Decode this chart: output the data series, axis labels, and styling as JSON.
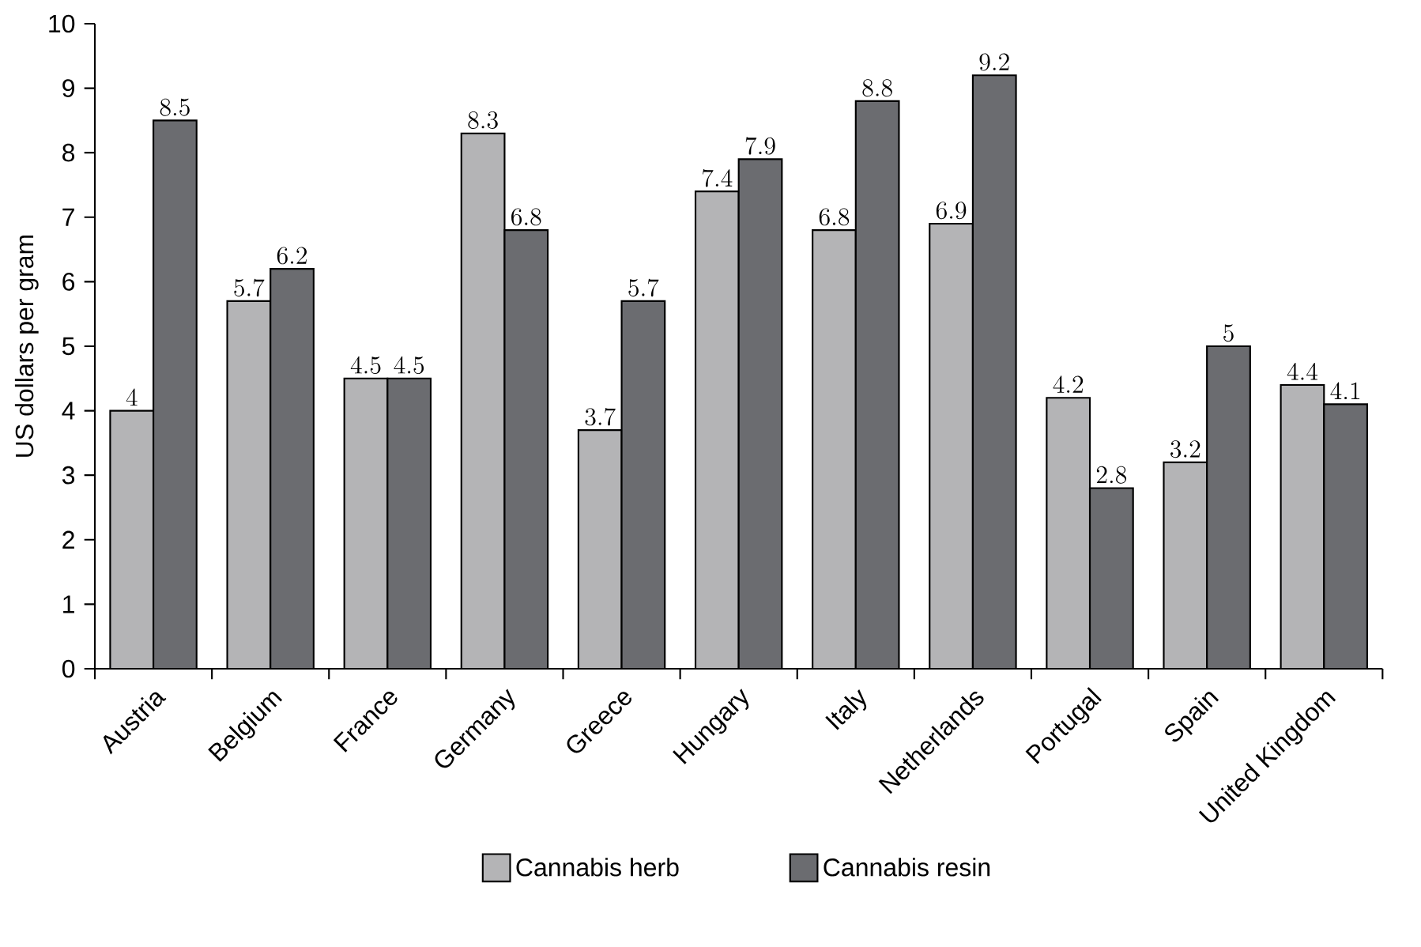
{
  "chart_data": {
    "type": "bar",
    "ylabel": "US dollars per gram",
    "categories": [
      "Austria",
      "Belgium",
      "France",
      "Germany",
      "Greece",
      "Hungary",
      "Italy",
      "Netherlands",
      "Portugal",
      "Spain",
      "United Kingdom"
    ],
    "series": [
      {
        "name": "Cannabis herb",
        "color": "#b4b4b6",
        "values": [
          4,
          5.7,
          4.5,
          8.3,
          3.7,
          7.4,
          6.8,
          6.9,
          4.2,
          3.2,
          4.4
        ]
      },
      {
        "name": "Cannabis resin",
        "color": "#6b6c70",
        "values": [
          8.5,
          6.2,
          4.5,
          6.8,
          5.7,
          7.9,
          8.8,
          9.2,
          2.8,
          5,
          4.1
        ]
      }
    ],
    "ylim": [
      0,
      10
    ],
    "yticks": [
      0,
      1,
      2,
      3,
      4,
      5,
      6,
      7,
      8,
      9,
      10
    ],
    "data_labels": true,
    "legend": "bottom",
    "grid": false
  }
}
